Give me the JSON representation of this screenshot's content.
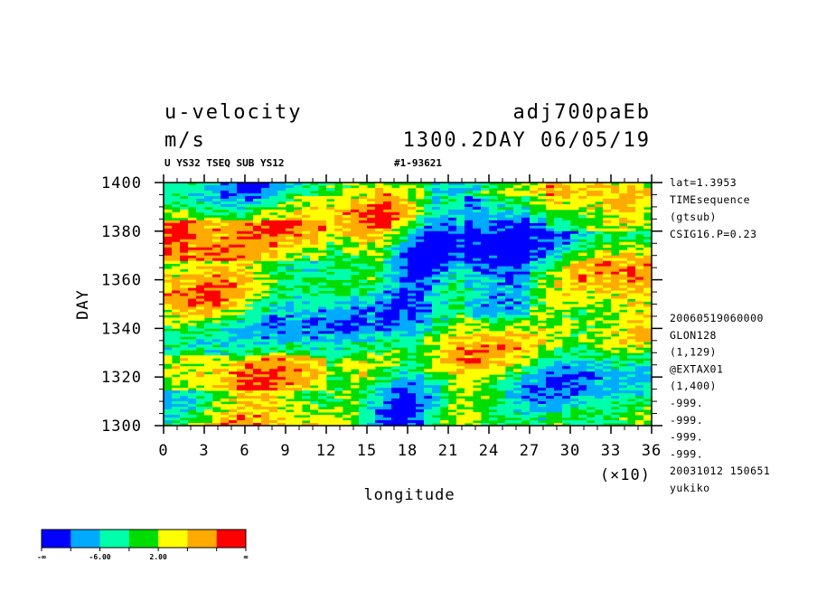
{
  "header": {
    "variable": "u-velocity",
    "dataset": "adj700paEb",
    "units": "m/s",
    "datetime": "1300.2DAY 06/05/19",
    "sub_left": "U YS32 TSEQ SUB YS12",
    "sub_right": "#1-93621"
  },
  "side_info": {
    "top": [
      "lat=1.3953",
      "TIMEsequence",
      "(gtsub)",
      "CSIG16.P=0.23"
    ],
    "bottom": [
      "20060519060000",
      "GLON128",
      "(1,129)",
      "@EXTAX01",
      "(1,400)",
      "-999.",
      "-999.",
      "-999.",
      "-999.",
      "20031012 150651",
      "yukiko"
    ]
  },
  "colorbar": {
    "colors": [
      "#0000ff",
      "#00aaff",
      "#00ffaa",
      "#00dd00",
      "#ffff00",
      "#ffaa00",
      "#ff0000"
    ],
    "tick_labels": [
      "-∞",
      "-6.00",
      "2.00",
      "∞"
    ]
  },
  "chart_data": {
    "type": "heatmap",
    "title": "u-velocity",
    "xlabel": "longitude",
    "ylabel": "DAY",
    "x_multiplier_label": "(×10)",
    "xlim": [
      0,
      36
    ],
    "ylim": [
      1300,
      1400
    ],
    "x_ticks": [
      "0",
      "3",
      "6",
      "9",
      "12",
      "15",
      "18",
      "21",
      "24",
      "27",
      "30",
      "33",
      "36"
    ],
    "y_ticks": [
      "1300",
      "1320",
      "1340",
      "1360",
      "1380",
      "1400"
    ],
    "grid": false,
    "note": "Shaded contours of zonal wind; blue (low) band concentrated near longitude 150-270, red (high) streaks elsewhere, tilting eastward with time."
  }
}
